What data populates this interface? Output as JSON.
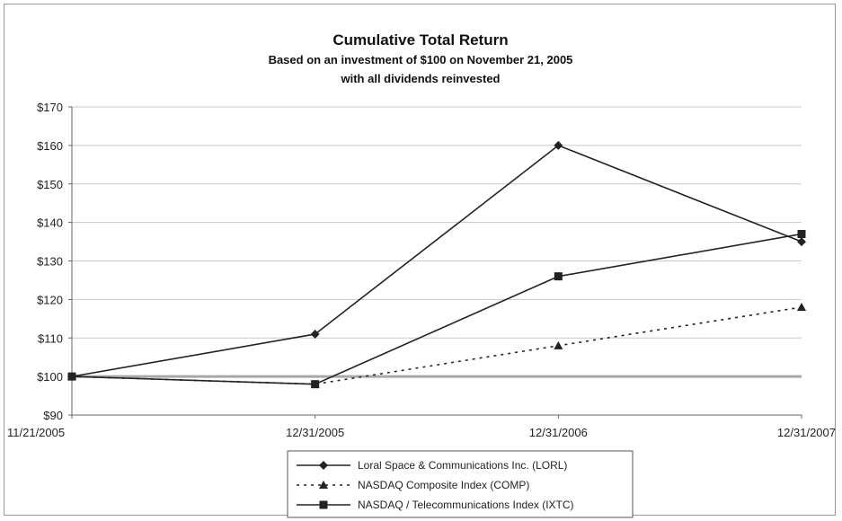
{
  "chart_data": {
    "type": "line",
    "title": "Cumulative Total Return",
    "subtitle_lines": [
      "Based on an investment of $100 on November 21, 2005",
      "with all dividends reinvested"
    ],
    "categories": [
      "11/21/2005",
      "12/31/2005",
      "12/31/2006",
      "12/31/2007"
    ],
    "y_tick_labels": [
      "$90",
      "$100",
      "$110",
      "$120",
      "$130",
      "$140",
      "$150",
      "$160",
      "$170"
    ],
    "ylim": [
      90,
      170
    ],
    "y_tick_step": 10,
    "grid": true,
    "legend_position": "bottom-center",
    "series": [
      {
        "name": "Loral Space & Communications Inc. (LORL)",
        "values": [
          100,
          111,
          160,
          135
        ],
        "marker": "diamond",
        "dash": "solid",
        "color": "#222222"
      },
      {
        "name": "NASDAQ Composite Index (COMP)",
        "values": [
          100,
          98,
          108,
          118
        ],
        "marker": "triangle",
        "dash": "dotted",
        "color": "#222222"
      },
      {
        "name": "NASDAQ / Telecommunications Index (IXTC)",
        "values": [
          100,
          98,
          126,
          137
        ],
        "marker": "square",
        "dash": "solid",
        "color": "#222222"
      }
    ]
  }
}
